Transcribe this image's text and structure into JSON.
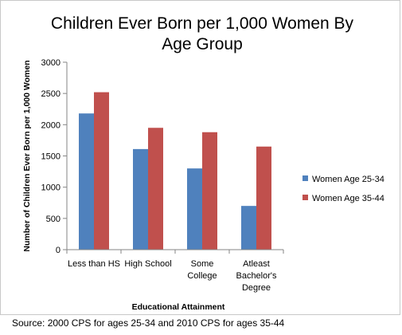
{
  "chart_data": {
    "type": "bar",
    "title_lines": [
      "Children Ever Born per 1,000 Women By",
      "Age Group"
    ],
    "xlabel": "Educational Attainment",
    "ylabel": "Number of Children Ever Born per 1,000 Women",
    "ylim": [
      0,
      3000
    ],
    "yticks": [
      0,
      500,
      1000,
      1500,
      2000,
      2500,
      3000
    ],
    "categories": [
      "Less than HS",
      "High School",
      "Some College",
      "Atleast Bachelor's Degree"
    ],
    "category_label_lines": [
      [
        "Less than HS"
      ],
      [
        "High School"
      ],
      [
        "Some",
        "College"
      ],
      [
        "Atleast",
        "Bachelor's",
        "Degree"
      ]
    ],
    "series": [
      {
        "name": "Women Age 25-34",
        "color": "#4F81BD",
        "values": [
          2180,
          1610,
          1300,
          700
        ]
      },
      {
        "name": "Women Age 35-44",
        "color": "#C0504D",
        "values": [
          2520,
          1950,
          1880,
          1650
        ]
      }
    ],
    "grid": false,
    "legend_position": "right"
  },
  "source_note": "Source: 2000 CPS for ages 25-34 and 2010 CPS for ages 35-44"
}
